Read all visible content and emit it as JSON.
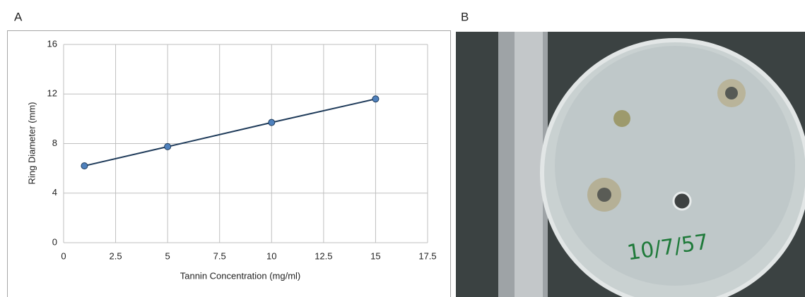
{
  "chart_data": {
    "type": "line",
    "panel_label": "A",
    "x_label": "Tannin Concentration (mg/ml)",
    "y_label": "Ring Diameter (mm)",
    "x": [
      1,
      5,
      10,
      15
    ],
    "values": [
      6.2,
      7.75,
      9.7,
      11.6
    ],
    "color": "#1f3b5a",
    "marker_color": "#4f81bd",
    "xlim": [
      0,
      17.5
    ],
    "xticks": [
      0,
      2.5,
      5,
      7.5,
      10,
      12.5,
      15,
      17.5
    ],
    "ylim": [
      0,
      16
    ],
    "yticks": [
      0,
      4,
      8,
      12,
      16
    ],
    "grid": true
  },
  "photo": {
    "panel_label": "B",
    "plate_label": "10/7/57"
  }
}
